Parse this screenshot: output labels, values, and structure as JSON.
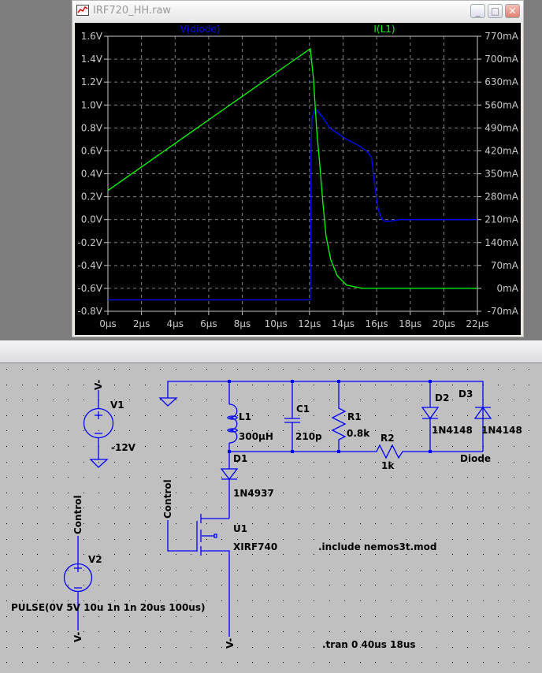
{
  "window": {
    "title": "IRF720_HH.raw",
    "icon": "waveform-icon",
    "buttons": [
      "minimize",
      "maximize",
      "close"
    ]
  },
  "chart_data": {
    "type": "line",
    "background": "#000000",
    "grid": true,
    "x_ticks": [
      "0µs",
      "2µs",
      "4µs",
      "6µs",
      "8µs",
      "10µs",
      "12µs",
      "14µs",
      "16µs",
      "18µs",
      "20µs",
      "22µs"
    ],
    "xlim": [
      0,
      22
    ],
    "left_ticks": [
      "1.6V",
      "1.4V",
      "1.2V",
      "1.0V",
      "0.8V",
      "0.6V",
      "0.4V",
      "0.2V",
      "0.0V",
      "-0.2V",
      "-0.4V",
      "-0.6V",
      "-0.8V"
    ],
    "ylim_left": [
      -0.8,
      1.6
    ],
    "right_ticks": [
      "770mA",
      "700mA",
      "630mA",
      "560mA",
      "490mA",
      "420mA",
      "350mA",
      "280mA",
      "210mA",
      "140mA",
      "70mA",
      "0mA",
      "-70mA"
    ],
    "ylim_right": [
      -70,
      770
    ],
    "series": [
      {
        "name": "V(diode)",
        "axis": "left",
        "color": "#0000ff",
        "x": [
          0,
          12.05,
          12.1,
          12.15,
          12.35,
          12.75,
          13.2,
          14.1,
          15.0,
          15.45,
          15.7,
          15.8,
          15.95,
          16.1,
          16.3,
          16.5,
          16.7,
          17.4,
          22
        ],
        "y": [
          -0.7,
          -0.7,
          0.66,
          0.885,
          0.97,
          0.9,
          0.8,
          0.71,
          0.64,
          0.59,
          0.54,
          0.4,
          0.23,
          0.09,
          0.005,
          -0.015,
          -0.015,
          0,
          0
        ]
      },
      {
        "name": "I(L1)",
        "axis": "right",
        "color": "#00ff00",
        "x": [
          0,
          12.05,
          12.24,
          12.43,
          12.62,
          12.81,
          12.99,
          13.27,
          13.65,
          14.21,
          15.15,
          22
        ],
        "y": [
          299,
          732,
          640,
          484,
          375,
          255,
          159,
          87,
          39,
          10,
          0,
          0
        ]
      }
    ]
  },
  "schematic": {
    "labels": {
      "v1_name": "V1",
      "v1_value": "-12V",
      "v1_net": "V-",
      "v2_name": "V2",
      "v2_value": "PULSE(0V 5V 10u 1n 1n 20us 100us)",
      "v2_top_net": "Control",
      "v2_bottom_net": "V-",
      "l1_name": "L1",
      "l1_value": "300µH",
      "c1_name": "C1",
      "c1_value": "210p",
      "r1_name": "R1",
      "r1_value": "0.8k",
      "r2_name": "R2",
      "r2_value": "1k",
      "d1_name": "D1",
      "d1_value": "1N4937",
      "d2_name": "D2",
      "d2_value": "1N4148",
      "d3_name": "D3",
      "d3_value": "1N4148",
      "net_diode": "Diode",
      "u1_name": "U1",
      "u1_value": "XIRF740",
      "u1_gate_net": "Control",
      "u1_source_net": "V-",
      "include": ".include nemos3t.mod",
      "tran": ".tran 0 40us 18us"
    },
    "wire_color": "#0000ff",
    "background": "#c0c0c0"
  }
}
